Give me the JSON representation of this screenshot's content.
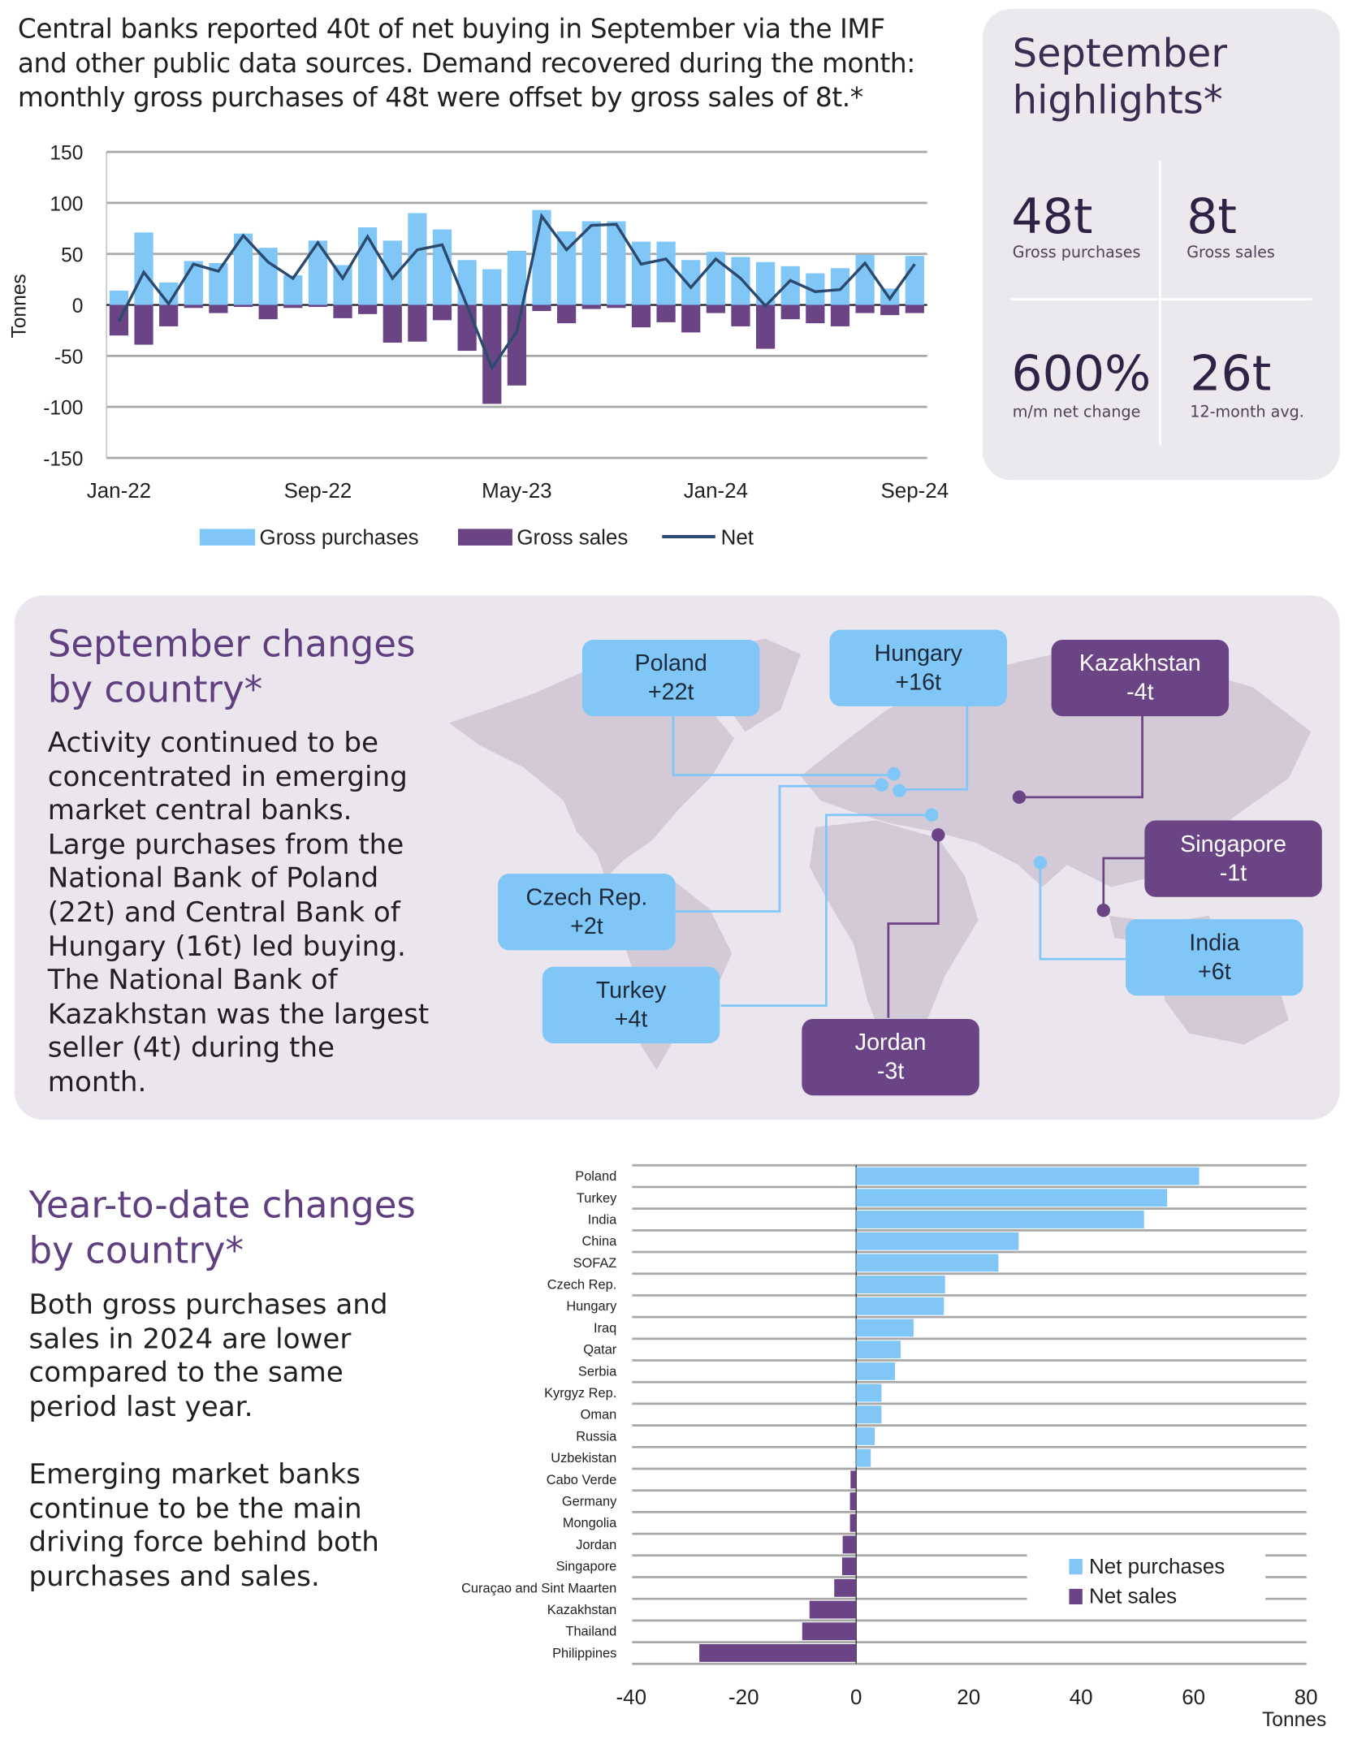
{
  "intro": "Central banks reported 40t of net buying in September via the IMF and other public data sources. Demand recovered during the month: monthly gross purchases of 48t were offset by gross sales of 8t.*",
  "highlights": {
    "title_line1": "September",
    "title_line2": "highlights*",
    "items": [
      {
        "value": "48t",
        "label": "Gross purchases"
      },
      {
        "value": "8t",
        "label": "Gross sales"
      },
      {
        "value": "600%",
        "label": "m/m net change"
      },
      {
        "value": "26t",
        "label": "12-month avg."
      }
    ]
  },
  "chart_data": [
    {
      "type": "bar",
      "ylabel": "Tonnes",
      "ylim": [
        -150,
        150
      ],
      "yticks": [
        "150",
        "100",
        "50",
        "0",
        "-50",
        "-100",
        "-150"
      ],
      "x_tick_labels": [
        "Jan-22",
        "Sep-22",
        "May-23",
        "Jan-24",
        "Sep-24"
      ],
      "x_range": [
        "Jan-22",
        "Sep-24"
      ],
      "grid": true,
      "legend_position": "bottom",
      "series": [
        {
          "name": "Gross purchases",
          "kind": "bar",
          "color": "#80c6f6",
          "values": [
            14,
            71,
            22,
            43,
            41,
            70,
            56,
            29,
            63,
            39,
            76,
            63,
            90,
            74,
            44,
            35,
            53,
            93,
            72,
            82,
            82,
            62,
            62,
            44,
            52,
            47,
            42,
            38,
            31,
            36,
            49,
            16,
            48
          ]
        },
        {
          "name": "Gross sales",
          "kind": "bar",
          "color": "#6a4485",
          "values": [
            -30,
            -39,
            -21,
            -3,
            -8,
            -2,
            -14,
            -3,
            -2,
            -13,
            -9,
            -37,
            -36,
            -15,
            -45,
            -97,
            -79,
            -6,
            -18,
            -4,
            -3,
            -22,
            -17,
            -27,
            -8,
            -21,
            -43,
            -14,
            -18,
            -21,
            -8,
            -10,
            -8
          ]
        },
        {
          "name": "Net",
          "kind": "line",
          "color": "#2b4a6e",
          "values": [
            -16,
            32,
            1,
            40,
            33,
            68,
            42,
            26,
            61,
            26,
            67,
            26,
            54,
            59,
            -1,
            -62,
            -26,
            87,
            54,
            78,
            79,
            40,
            45,
            17,
            45,
            26,
            -1,
            24,
            13,
            15,
            41,
            6,
            40
          ]
        }
      ]
    },
    {
      "type": "bar",
      "orientation": "horizontal",
      "xlabel": "Tonnes",
      "xlim": [
        -40,
        80
      ],
      "xticks": [
        "-40",
        "-20",
        "0",
        "20",
        "40",
        "60",
        "80"
      ],
      "grid": true,
      "legend_position": "bottom-right",
      "legend": [
        {
          "name": "Net purchases",
          "color": "#80c6f6"
        },
        {
          "name": "Net sales",
          "color": "#6a4485"
        }
      ],
      "categories": [
        "Poland",
        "Turkey",
        "India",
        "China",
        "SOFAZ",
        "Czech Rep.",
        "Hungary",
        "Iraq",
        "Qatar",
        "Serbia",
        "Kyrgyz Rep.",
        "Oman",
        "Russia",
        "Uzbekistan",
        "Cabo Verde",
        "Germany",
        "Mongolia",
        "Jordan",
        "Singapore",
        "Curaçao and Sint Maarten",
        "Kazakhstan",
        "Thailand",
        "Philippines"
      ],
      "values": [
        61,
        55.3,
        51.2,
        28.9,
        25.3,
        15.8,
        15.6,
        10.2,
        7.9,
        6.9,
        4.5,
        4.5,
        3.3,
        2.6,
        -1.0,
        -1.1,
        -1.1,
        -2.4,
        -2.5,
        -3.9,
        -8.3,
        -9.6,
        -27.9
      ]
    }
  ],
  "sept": {
    "title_line1": "September changes",
    "title_line2": "by country*",
    "paragraph": "Activity continued to be concentrated in emerging market central banks. Large purchases from the National Bank of Poland (22t) and Central Bank of Hungary (16t) led buying. The National Bank of Kazakhstan was the largest seller (4t) during the month.",
    "callouts": [
      {
        "country": "Poland",
        "value": "+22t"
      },
      {
        "country": "Hungary",
        "value": "+16t"
      },
      {
        "country": "Kazakhstan",
        "value": "-4t"
      },
      {
        "country": "Singapore",
        "value": "-1t"
      },
      {
        "country": "Czech Rep.",
        "value": "+2t"
      },
      {
        "country": "India",
        "value": "+6t"
      },
      {
        "country": "Turkey",
        "value": "+4t"
      },
      {
        "country": "Jordan",
        "value": "-3t"
      }
    ]
  },
  "ytd": {
    "title_line1": "Year-to-date changes",
    "title_line2": "by country*",
    "paragraph1": "Both gross purchases and sales in 2024 are lower compared to the same period last year.",
    "paragraph2": "Emerging market banks continue to be the main driving force behind both purchases and sales."
  },
  "colors": {
    "purchase": "#80c6f6",
    "sale": "#6a4485",
    "net": "#2b4a6e",
    "heading": "#5f3f80"
  }
}
